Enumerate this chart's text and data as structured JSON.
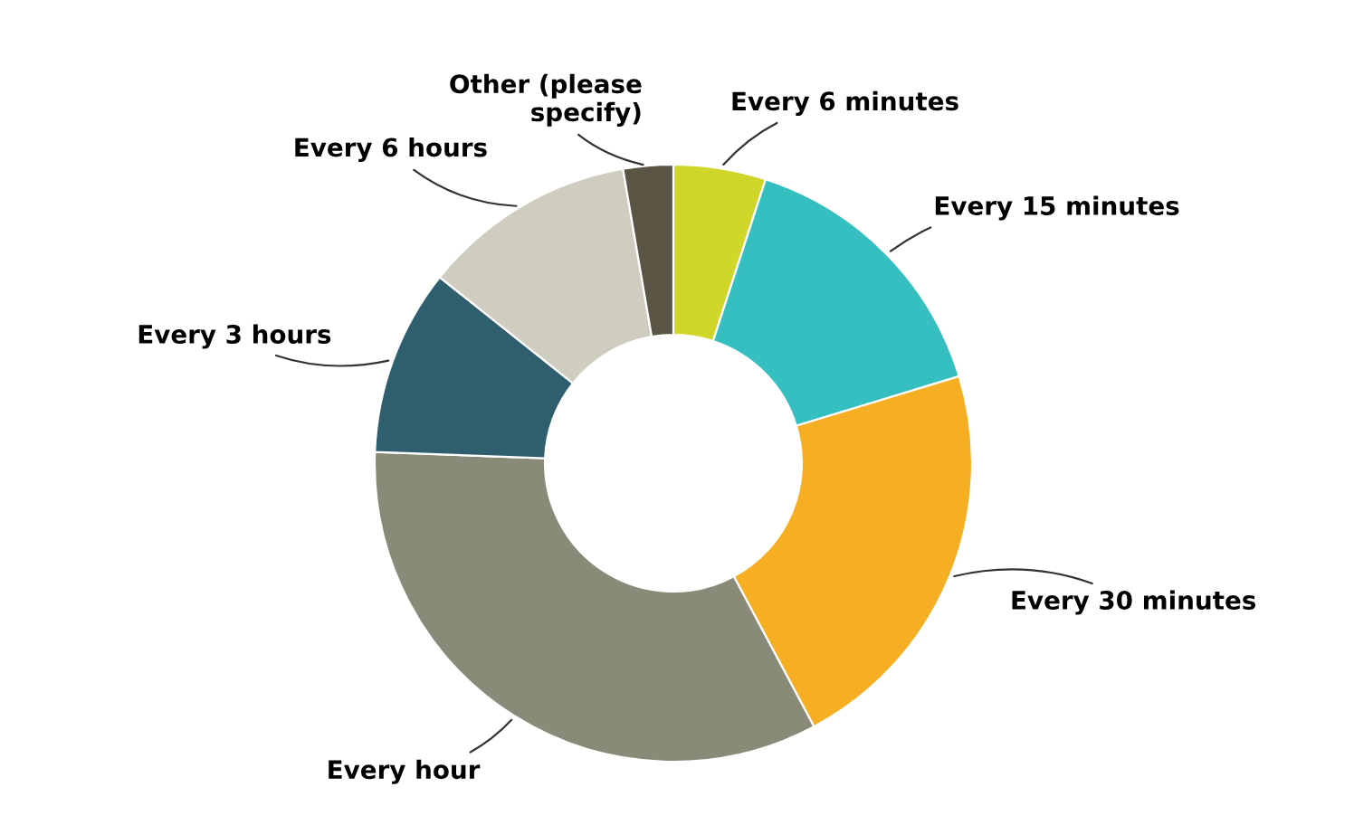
{
  "chart_data": {
    "type": "donut",
    "categories": [
      "Every 6 minutes",
      "Every 15 minutes",
      "Every 30 minutes",
      "Every hour",
      "Every 3 hours",
      "Every 6 hours",
      "Other (please\nspecify)"
    ],
    "values": [
      5,
      15.3,
      21.9,
      33.4,
      10.1,
      11.6,
      2.7
    ],
    "colors": [
      "#d0d62a",
      "#35bfc0",
      "#f6ae22",
      "#8a8a78",
      "#2f5f6e",
      "#cfcdbf",
      "#5a5545"
    ],
    "legend": false
  }
}
